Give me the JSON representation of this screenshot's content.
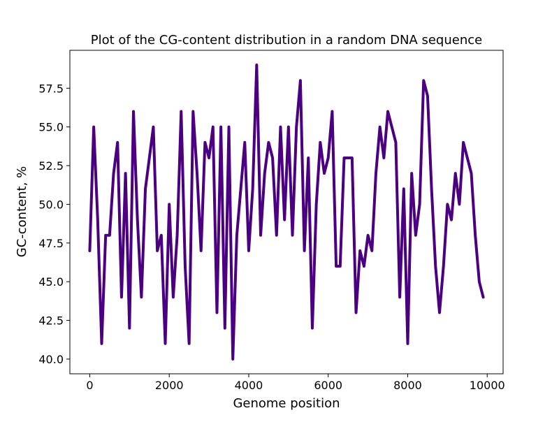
{
  "chart_data": {
    "type": "line",
    "title": "Plot of the CG-content distribution in a random DNA sequence",
    "xlabel": "Genome position",
    "ylabel": "GC-content, %",
    "xlim": [
      -500,
      10400
    ],
    "ylim": [
      39.05,
      59.95
    ],
    "x_ticks": [
      0,
      2000,
      4000,
      6000,
      8000,
      10000
    ],
    "x_tick_labels": [
      "0",
      "2000",
      "4000",
      "6000",
      "8000",
      "10000"
    ],
    "y_ticks": [
      40.0,
      42.5,
      45.0,
      47.5,
      50.0,
      52.5,
      55.0,
      57.5
    ],
    "y_tick_labels": [
      "40.0",
      "42.5",
      "45.0",
      "47.5",
      "50.0",
      "52.5",
      "55.0",
      "57.5"
    ],
    "grid": false,
    "legend": "none",
    "series": [
      {
        "color": "#4b0082",
        "x": [
          0,
          100,
          200,
          300,
          400,
          500,
          600,
          700,
          800,
          900,
          1000,
          1100,
          1200,
          1300,
          1400,
          1500,
          1600,
          1700,
          1800,
          1900,
          2000,
          2100,
          2200,
          2300,
          2400,
          2500,
          2600,
          2700,
          2800,
          2900,
          3000,
          3100,
          3200,
          3300,
          3400,
          3500,
          3600,
          3700,
          3800,
          3900,
          4000,
          4100,
          4200,
          4300,
          4400,
          4500,
          4600,
          4700,
          4800,
          4900,
          5000,
          5100,
          5200,
          5300,
          5400,
          5500,
          5600,
          5700,
          5800,
          5900,
          6000,
          6100,
          6200,
          6300,
          6400,
          6500,
          6600,
          6700,
          6800,
          6900,
          7000,
          7100,
          7200,
          7300,
          7400,
          7500,
          7600,
          7700,
          7800,
          7900,
          8000,
          8100,
          8200,
          8300,
          8400,
          8500,
          8600,
          8700,
          8800,
          8900,
          9000,
          9100,
          9200,
          9300,
          9400,
          9500,
          9600,
          9700,
          9800,
          9900
        ],
        "y": [
          47,
          55,
          49,
          41,
          48,
          48,
          52,
          54,
          44,
          52,
          42,
          56,
          49,
          44,
          51,
          53,
          55,
          47,
          48,
          41,
          50,
          44,
          48,
          56,
          46,
          41,
          56,
          52,
          47,
          54,
          53,
          55,
          43,
          55,
          42,
          55,
          40,
          48,
          51,
          54,
          47,
          51,
          59,
          48,
          52,
          54,
          53,
          48,
          55,
          49,
          55,
          48,
          55,
          58,
          47,
          53,
          42,
          50,
          54,
          52,
          53,
          56,
          46,
          46,
          53,
          53,
          53,
          43,
          47,
          46,
          48,
          47,
          52,
          55,
          53,
          56,
          55,
          54,
          44,
          51,
          41,
          52,
          48,
          50,
          58,
          57,
          51,
          46,
          43,
          46,
          50,
          49,
          52,
          50,
          54,
          53,
          52,
          48,
          45,
          44
        ]
      }
    ]
  }
}
